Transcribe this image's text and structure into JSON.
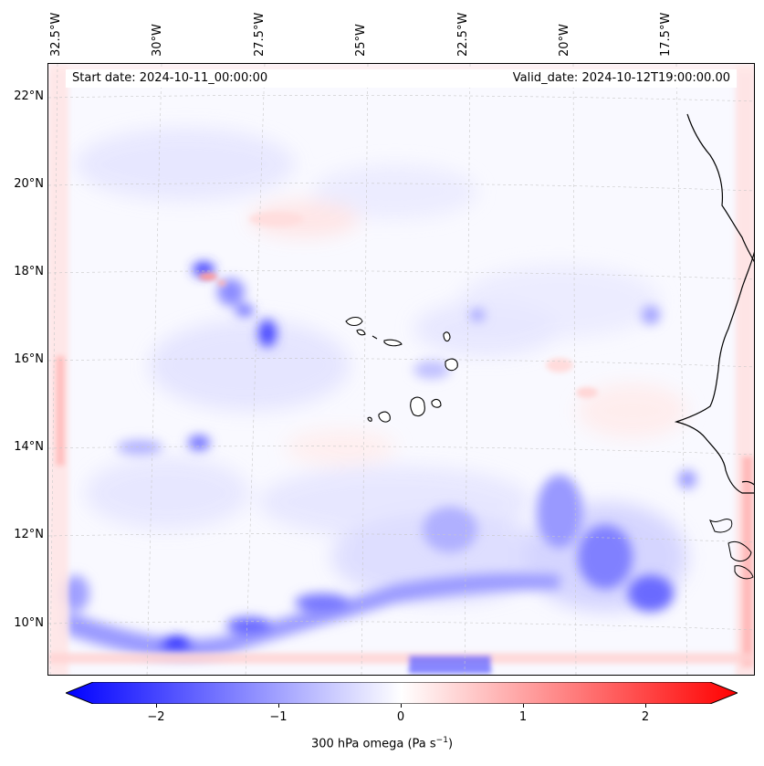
{
  "map": {
    "start_date_text": "Start date: 2024-10-11_00:00:00",
    "valid_date_text": "Valid_date: 2024-10-12T19:00:00.00",
    "longitude_labels": [
      "32.5°W",
      "30°W",
      "27.5°W",
      "25°W",
      "22.5°W",
      "20°W",
      "17.5°W"
    ],
    "latitude_labels": [
      "22°N",
      "20°N",
      "18°N",
      "16°N",
      "14°N",
      "12°N",
      "10°N"
    ],
    "colorbar": {
      "label": "300 hPa omega (Pa s",
      "label_exponent": "−1",
      "label_suffix": ")",
      "ticks": [
        "−2",
        "−1",
        "0",
        "1",
        "2"
      ],
      "range": [
        -2.6,
        2.6
      ],
      "cmap": "bwr",
      "min_color": "#0000ff",
      "mid_color": "#ffffff",
      "max_color": "#ff0000"
    },
    "colors": {
      "coastline": "#000000",
      "gridline": "#c8c8c8"
    }
  }
}
